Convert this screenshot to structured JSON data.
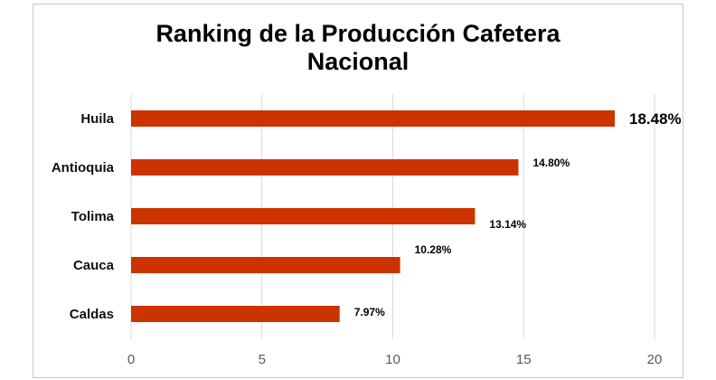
{
  "chart_data": {
    "type": "bar",
    "orientation": "horizontal",
    "title_lines": [
      "Ranking de la Producción Cafetera",
      "Nacional"
    ],
    "categories": [
      "Huila",
      "Antioquia",
      "Tolima",
      "Cauca",
      "Caldas"
    ],
    "values": [
      18.48,
      14.8,
      13.14,
      10.28,
      7.97
    ],
    "data_labels": [
      "18.48%",
      "14.80%",
      "13.14%",
      "10.28%",
      "7.97%"
    ],
    "xlim": [
      0,
      20
    ],
    "x_ticks": [
      0,
      5,
      10,
      15,
      20
    ],
    "grid": true,
    "legend": "none",
    "bar_color": "#cc3300"
  }
}
